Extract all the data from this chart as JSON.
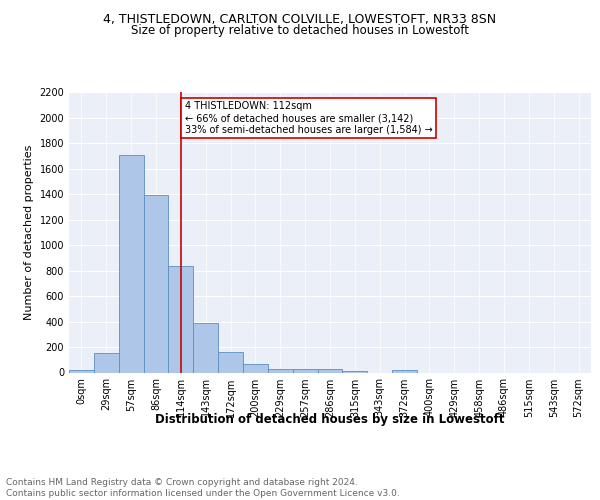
{
  "title1": "4, THISTLEDOWN, CARLTON COLVILLE, LOWESTOFT, NR33 8SN",
  "title2": "Size of property relative to detached houses in Lowestoft",
  "xlabel": "Distribution of detached houses by size in Lowestoft",
  "ylabel": "Number of detached properties",
  "bin_labels": [
    "0sqm",
    "29sqm",
    "57sqm",
    "86sqm",
    "114sqm",
    "143sqm",
    "172sqm",
    "200sqm",
    "229sqm",
    "257sqm",
    "286sqm",
    "315sqm",
    "343sqm",
    "372sqm",
    "400sqm",
    "429sqm",
    "458sqm",
    "486sqm",
    "515sqm",
    "543sqm",
    "572sqm"
  ],
  "bin_values": [
    20,
    155,
    1710,
    1395,
    840,
    390,
    165,
    70,
    30,
    28,
    28,
    15,
    0,
    20,
    0,
    0,
    0,
    0,
    0,
    0,
    0
  ],
  "bar_color": "#aec6e8",
  "bar_edge_color": "#5a8fc2",
  "vline_x": 4,
  "vline_color": "#cc0000",
  "annotation_text": "4 THISTLEDOWN: 112sqm\n← 66% of detached houses are smaller (3,142)\n33% of semi-detached houses are larger (1,584) →",
  "annotation_box_color": "#ffffff",
  "annotation_box_edge": "#cc0000",
  "ylim": [
    0,
    2200
  ],
  "yticks": [
    0,
    200,
    400,
    600,
    800,
    1000,
    1200,
    1400,
    1600,
    1800,
    2000,
    2200
  ],
  "footer_text": "Contains HM Land Registry data © Crown copyright and database right 2024.\nContains public sector information licensed under the Open Government Licence v3.0.",
  "bg_color": "#eaeff8",
  "title1_fontsize": 9,
  "title2_fontsize": 8.5,
  "xlabel_fontsize": 8.5,
  "ylabel_fontsize": 8,
  "footer_fontsize": 6.5,
  "tick_fontsize": 7,
  "annot_fontsize": 7
}
